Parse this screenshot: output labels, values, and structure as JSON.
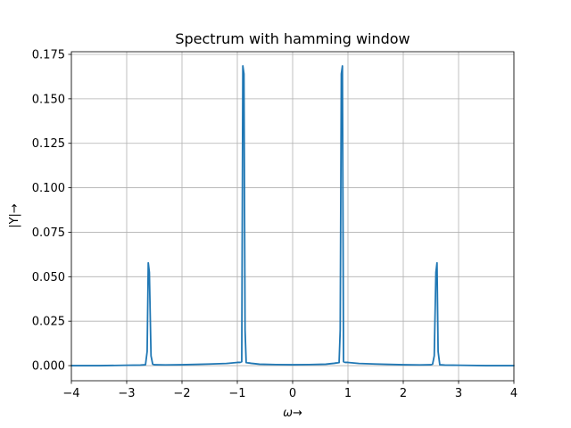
{
  "chart_data": {
    "type": "line",
    "title": "Spectrum with hamming window",
    "xlabel": "ω→",
    "ylabel": "|Y|→",
    "xlim": [
      -4,
      4
    ],
    "ylim": [
      -0.0085,
      0.1765
    ],
    "grid": true,
    "x_ticks": [
      -4,
      -3,
      -2,
      -1,
      0,
      1,
      2,
      3,
      4
    ],
    "x_tick_labels": [
      "−4",
      "−3",
      "−2",
      "−1",
      "0",
      "1",
      "2",
      "3",
      "4"
    ],
    "y_ticks": [
      0.0,
      0.025,
      0.05,
      0.075,
      0.1,
      0.125,
      0.15,
      0.175
    ],
    "y_tick_labels": [
      "0.000",
      "0.025",
      "0.050",
      "0.075",
      "0.100",
      "0.125",
      "0.150",
      "0.175"
    ],
    "colors": {
      "line": "#1f77b4",
      "grid": "#b0b0b0",
      "axes": "#000000"
    },
    "series": [
      {
        "x": [
          -4.0,
          -3.5,
          -3.0,
          -2.75,
          -2.66,
          -2.63,
          -2.61,
          -2.59,
          -2.56,
          -2.53,
          -2.5,
          -2.3,
          -2.0,
          -1.5,
          -1.2,
          -1.0,
          -0.95,
          -0.92,
          -0.9,
          -0.88,
          -0.86,
          -0.84,
          -0.82,
          -0.79,
          -0.75,
          -0.6,
          -0.3,
          0.0,
          0.3,
          0.6,
          0.75,
          0.79,
          0.82,
          0.84,
          0.86,
          0.88,
          0.9,
          0.92,
          0.95,
          1.0,
          1.2,
          1.5,
          2.0,
          2.3,
          2.5,
          2.53,
          2.56,
          2.59,
          2.61,
          2.63,
          2.66,
          2.75,
          3.0,
          3.5,
          4.0
        ],
        "y": [
          0.0,
          0.0,
          0.0002,
          0.0003,
          0.0005,
          0.008,
          0.0578,
          0.0525,
          0.0055,
          0.0008,
          0.0005,
          0.0004,
          0.0005,
          0.0009,
          0.0012,
          0.0018,
          0.0018,
          0.0022,
          0.1685,
          0.164,
          0.02,
          0.0017,
          0.0016,
          0.0015,
          0.0013,
          0.0008,
          0.0006,
          0.0005,
          0.0006,
          0.0008,
          0.0013,
          0.0015,
          0.0016,
          0.0017,
          0.02,
          0.164,
          0.1685,
          0.0022,
          0.0018,
          0.0018,
          0.0012,
          0.0009,
          0.0005,
          0.0004,
          0.0005,
          0.0008,
          0.0055,
          0.0525,
          0.0578,
          0.008,
          0.0005,
          0.0003,
          0.0002,
          0.0,
          0.0
        ]
      }
    ]
  }
}
